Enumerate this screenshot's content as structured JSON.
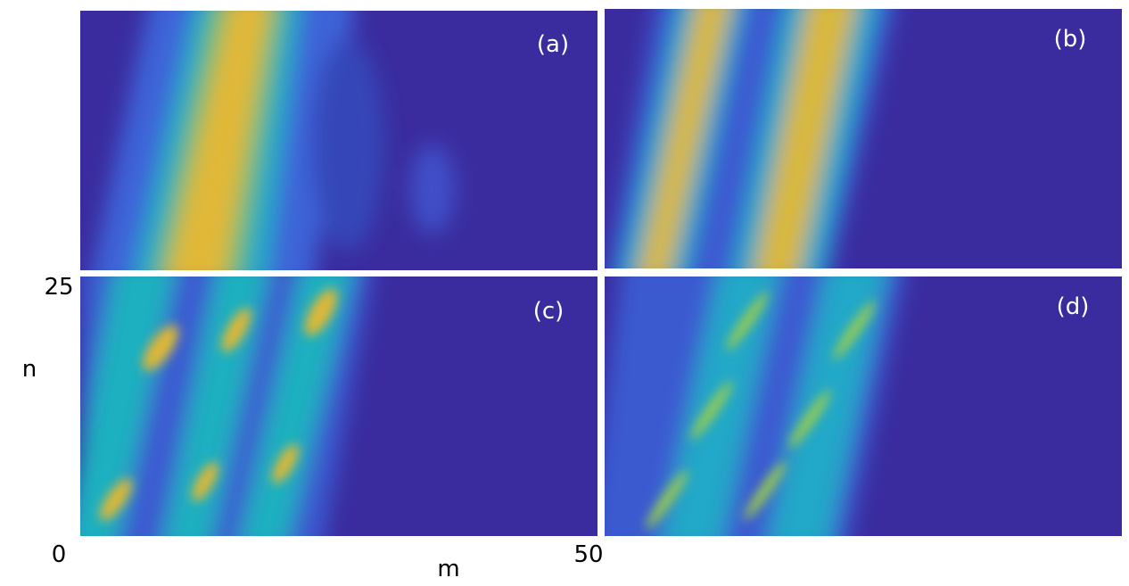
{
  "panels": [
    {
      "label": "(a)"
    },
    {
      "label": "(b)"
    },
    {
      "label": "(c)"
    },
    {
      "label": "(d)"
    }
  ],
  "axes": {
    "y_label": "n",
    "y_tick_top": "25",
    "x_label": "m",
    "x_tick_left": "0",
    "x_tick_right": "50"
  }
}
